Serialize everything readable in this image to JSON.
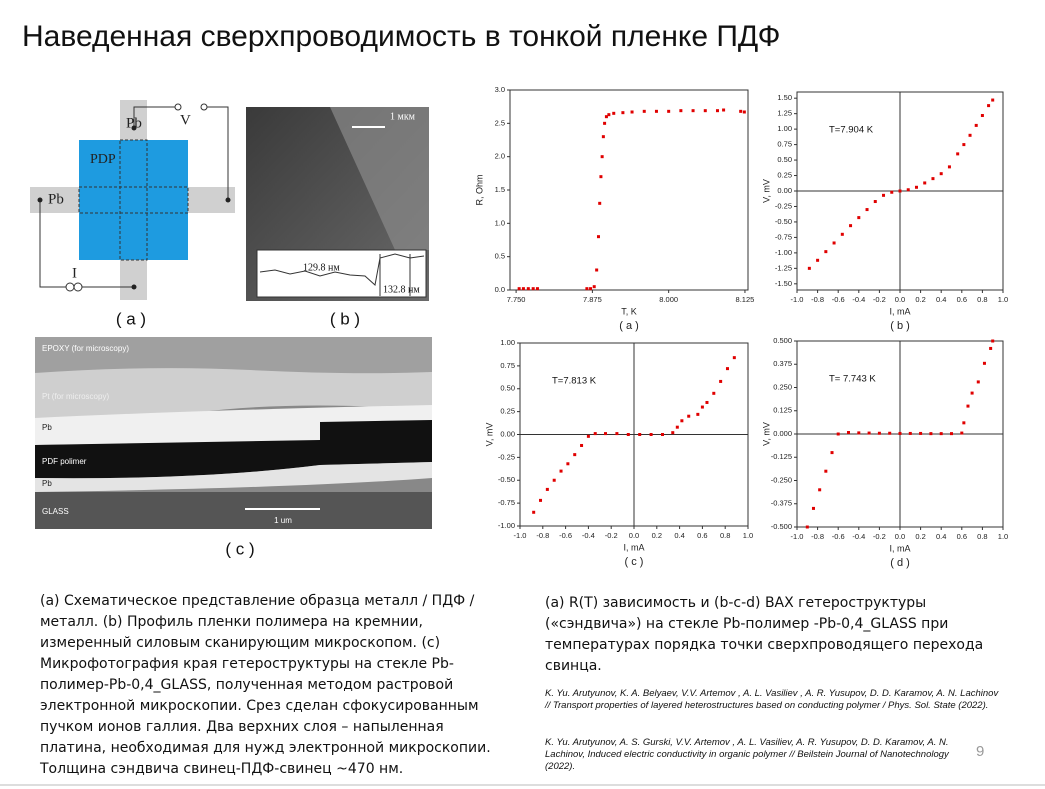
{
  "title": "Наведенная сверхпроводимость в тонкой пленке ПДФ",
  "schematic": {
    "pb_top": "Pb",
    "v": "V",
    "pdp": "PDP",
    "pb_left": "Pb",
    "i": "I",
    "caption": "( a )"
  },
  "afm": {
    "scale": "1 мкм",
    "depth1": "129.8 нм",
    "depth2": "132.8 нм",
    "caption": "( b )"
  },
  "tem": {
    "epoxy": "EPOXY (for microscopy)",
    "pt": "Pt (for microscopy)",
    "pb_top": "Pb",
    "polymer": "PDF polimer",
    "pb_bottom": "Pb",
    "glass": "GLASS",
    "scale": "1 um",
    "caption": "( c )"
  },
  "chart_data": [
    {
      "type": "scatter",
      "x_label": "T, K",
      "y_label": "R, Ohm",
      "panel_label": "( a )",
      "color": "#e00000",
      "zero_axes": false,
      "xlim": [
        7.74,
        8.13
      ],
      "ylim": [
        0,
        3
      ],
      "xticks": [
        {
          "value": 7.75,
          "label": "7.750"
        },
        {
          "value": 7.875,
          "label": "7.875"
        },
        {
          "value": 8,
          "label": "8.000"
        },
        {
          "value": 8.125,
          "label": "8.125"
        }
      ],
      "yticks": [
        {
          "value": 0,
          "label": "0.0"
        },
        0.5,
        {
          "value": 1,
          "label": "1.0"
        },
        1.5,
        {
          "value": 2,
          "label": "2.0"
        },
        2.5,
        {
          "value": 3,
          "label": "3.0"
        }
      ],
      "x": [
        7.755,
        7.762,
        7.77,
        7.778,
        7.785,
        7.866,
        7.872,
        7.878,
        7.882,
        7.885,
        7.887,
        7.889,
        7.891,
        7.893,
        7.895,
        7.898,
        7.902,
        7.91,
        7.925,
        7.94,
        7.96,
        7.98,
        8.0,
        8.02,
        8.04,
        8.06,
        8.08,
        8.09,
        8.118,
        8.124
      ],
      "values": [
        0.02,
        0.02,
        0.02,
        0.02,
        0.02,
        0.02,
        0.02,
        0.05,
        0.3,
        0.8,
        1.3,
        1.7,
        2.0,
        2.3,
        2.5,
        2.6,
        2.63,
        2.65,
        2.66,
        2.67,
        2.68,
        2.68,
        2.68,
        2.69,
        2.69,
        2.69,
        2.69,
        2.7,
        2.68,
        2.67
      ]
    },
    {
      "type": "scatter",
      "x_label": "I, mA",
      "y_label": "V, mV",
      "annotation": "T=7.904 K",
      "panel_label": "( b )",
      "color": "#e00000",
      "zero_axes": true,
      "xlim": [
        -1,
        1
      ],
      "ylim": [
        -1.6,
        1.6
      ],
      "xticks": [
        {
          "value": -1,
          "label": "-1.0"
        },
        -0.8,
        -0.6,
        -0.4,
        -0.2,
        {
          "value": 0,
          "label": "0.0"
        },
        0.2,
        0.4,
        0.6,
        0.8,
        {
          "value": 1,
          "label": "1.0"
        }
      ],
      "yticks": [
        {
          "value": -1.5,
          "label": "-1.50"
        },
        {
          "value": -1.25,
          "label": "-1.25"
        },
        {
          "value": -1,
          "label": "-1.00"
        },
        {
          "value": -0.75,
          "label": "-0.75"
        },
        {
          "value": -0.5,
          "label": "-0.50"
        },
        {
          "value": -0.25,
          "label": "-0.25"
        },
        {
          "value": 0,
          "label": "0.00"
        },
        {
          "value": 0.25,
          "label": "0.25"
        },
        {
          "value": 0.5,
          "label": "0.50"
        },
        {
          "value": 0.75,
          "label": "0.75"
        },
        {
          "value": 1,
          "label": "1.00"
        },
        {
          "value": 1.25,
          "label": "1.25"
        },
        {
          "value": 1.5,
          "label": "1.50"
        }
      ],
      "x": [
        -0.88,
        -0.8,
        -0.72,
        -0.64,
        -0.56,
        -0.48,
        -0.4,
        -0.32,
        -0.24,
        -0.16,
        -0.08,
        0,
        0.08,
        0.16,
        0.24,
        0.32,
        0.4,
        0.48,
        0.56,
        0.62,
        0.68,
        0.74,
        0.8,
        0.86,
        0.9
      ],
      "values": [
        -1.25,
        -1.12,
        -0.98,
        -0.84,
        -0.7,
        -0.56,
        -0.43,
        -0.3,
        -0.17,
        -0.07,
        -0.02,
        0,
        0.02,
        0.06,
        0.13,
        0.2,
        0.28,
        0.39,
        0.6,
        0.75,
        0.9,
        1.06,
        1.22,
        1.38,
        1.47
      ]
    },
    {
      "type": "scatter",
      "x_label": "I, mA",
      "y_label": "V, mV",
      "annotation": "T=7.813 K",
      "panel_label": "( c )",
      "color": "#e00000",
      "zero_axes": true,
      "xlim": [
        -1,
        1
      ],
      "ylim": [
        -1,
        1
      ],
      "xticks": [
        {
          "value": -1,
          "label": "-1.0"
        },
        -0.8,
        -0.6,
        -0.4,
        -0.2,
        {
          "value": 0,
          "label": "0.0"
        },
        0.2,
        0.4,
        0.6,
        0.8,
        {
          "value": 1,
          "label": "1.0"
        }
      ],
      "yticks": [
        {
          "value": -1,
          "label": "-1.00"
        },
        {
          "value": -0.75,
          "label": "-0.75"
        },
        {
          "value": -0.5,
          "label": "-0.50"
        },
        {
          "value": -0.25,
          "label": "-0.25"
        },
        {
          "value": 0,
          "label": "0.00"
        },
        {
          "value": 0.25,
          "label": "0.25"
        },
        {
          "value": 0.5,
          "label": "0.50"
        },
        {
          "value": 0.75,
          "label": "0.75"
        },
        {
          "value": 1,
          "label": "1.00"
        }
      ],
      "x": [
        -0.88,
        -0.82,
        -0.76,
        -0.7,
        -0.64,
        -0.58,
        -0.52,
        -0.46,
        -0.4,
        -0.34,
        -0.25,
        -0.15,
        -0.05,
        0.05,
        0.15,
        0.25,
        0.34,
        0.38,
        0.42,
        0.48,
        0.56,
        0.6,
        0.64,
        0.7,
        0.76,
        0.82,
        0.88
      ],
      "values": [
        -0.85,
        -0.72,
        -0.6,
        -0.5,
        -0.4,
        -0.32,
        -0.22,
        -0.12,
        -0.02,
        0.01,
        0.01,
        0.01,
        0,
        0,
        0,
        0,
        0.02,
        0.08,
        0.15,
        0.2,
        0.22,
        0.3,
        0.35,
        0.45,
        0.58,
        0.72,
        0.84
      ]
    },
    {
      "type": "scatter",
      "x_label": "I, mA",
      "y_label": "V, mV",
      "annotation": "T= 7.743 K",
      "panel_label": "( d )",
      "color": "#e00000",
      "zero_axes": true,
      "xlim": [
        -1,
        1
      ],
      "ylim": [
        -0.5,
        0.5
      ],
      "xticks": [
        {
          "value": -1,
          "label": "-1.0"
        },
        -0.8,
        -0.6,
        -0.4,
        -0.2,
        {
          "value": 0,
          "label": "0.0"
        },
        0.2,
        0.4,
        0.6,
        0.8,
        {
          "value": 1,
          "label": "1.0"
        }
      ],
      "yticks": [
        {
          "value": -0.5,
          "label": "-0.500"
        },
        -0.375,
        {
          "value": -0.25,
          "label": "-0.250"
        },
        -0.125,
        {
          "value": 0,
          "label": "0.000"
        },
        0.125,
        {
          "value": 0.25,
          "label": "0.250"
        },
        0.375,
        {
          "value": 0.5,
          "label": "0.500"
        }
      ],
      "x": [
        -0.9,
        -0.84,
        -0.78,
        -0.72,
        -0.66,
        -0.6,
        -0.5,
        -0.4,
        -0.3,
        -0.2,
        -0.1,
        0,
        0.1,
        0.2,
        0.3,
        0.4,
        0.5,
        0.6,
        0.62,
        0.66,
        0.7,
        0.76,
        0.82,
        0.88,
        0.9
      ],
      "values": [
        -0.5,
        -0.4,
        -0.3,
        -0.2,
        -0.1,
        0,
        0.008,
        0.006,
        0.005,
        0.004,
        0.004,
        0.003,
        0.003,
        0.003,
        0.002,
        0.002,
        0.002,
        0.005,
        0.06,
        0.15,
        0.22,
        0.28,
        0.38,
        0.46,
        0.5
      ]
    }
  ],
  "caption_left": "(a) Схематическое представление образца металл / ПДФ / металл. (b) Профиль пленки полимера на кремнии, измеренный силовым сканирующим микроскопом. (c) Микрофотография края гетероструктуры на стекле Pb-полимер-Pb-0,4_GLASS, полученная методом растровой электронной микроскопии. Срез сделан сфокусированным пучком ионов галлия. Два верхних слоя – напыленная платина, необходимая для нужд электронной микроскопии. Толщина сэндвича свинец-ПДФ-свинец ~470 нм.",
  "caption_right": "(a)  R(T) зависимость и (b-c-d) ВАХ гетероструктуры («сэндвича») на стекле Pb-полимер -Pb-0,4_GLASS при температурах порядка точки сверхпроводящего перехода свинца.",
  "references": [
    "K. Yu. Arutyunov, K. A. Belyaev,  V.V. Artemov , A. L. Vasiliev , A. R. Yusupov,  D. D. Karamov, A. N.  Lachinov // Transport properties of layered heterostructures based on conducting polymer / Phys. Sol. State (2022).",
    "K. Yu. Arutyunov, A. S. Gurski,  V.V. Artemov , A. L. Vasiliev, A. R. Yusupov,  D. D. Karamov, A. N. Lachinov,  Induced electric conductivity in organic polymer // Beilstein Journal of Nanotechnology (2022)."
  ],
  "page_number": "9"
}
